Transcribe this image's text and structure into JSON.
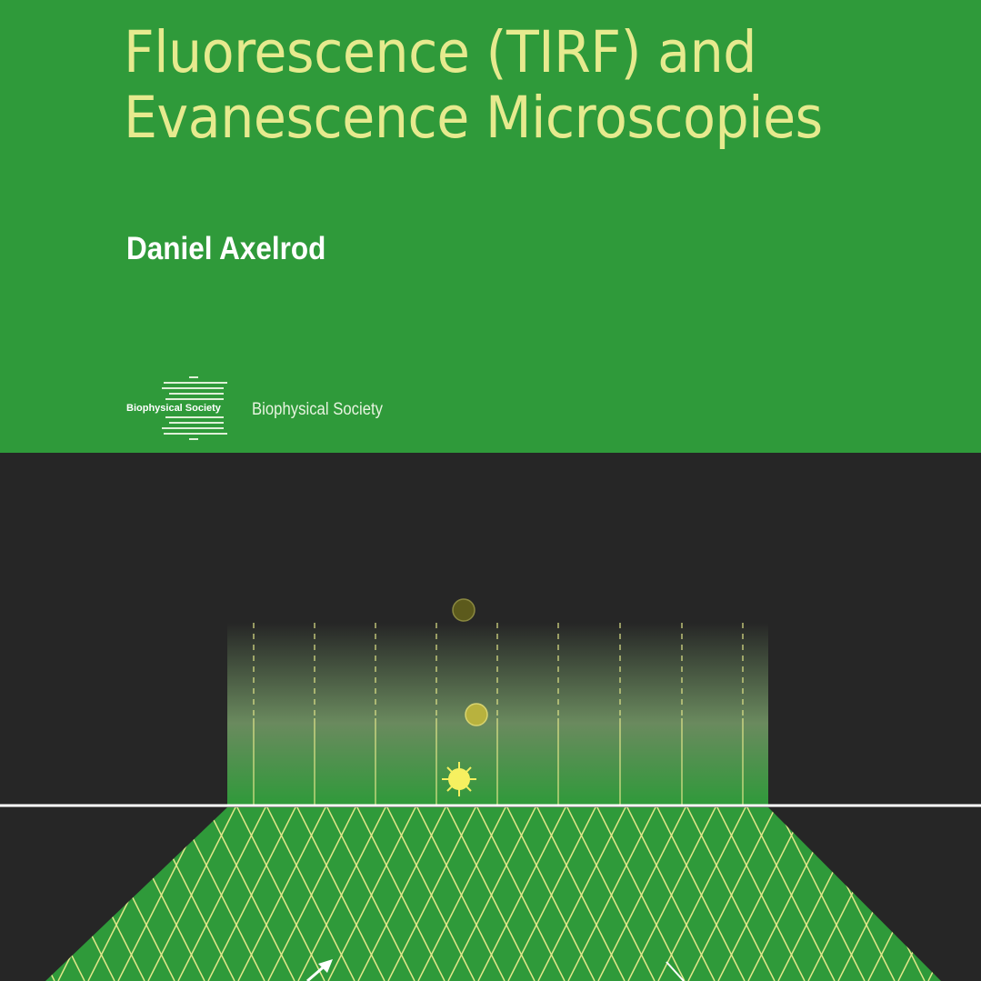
{
  "cover": {
    "title_lines": [
      "Fluorescence (TIRF) and",
      "Evanescence Microscopies"
    ],
    "author": "Daniel Axelrod",
    "logo_text": "Biophysical Society",
    "publisher": "Biophysical Society",
    "colors": {
      "green": "#2f9a3a",
      "dark": "#262626",
      "title": "#e6ea8e",
      "ray": "#e2e68a"
    }
  }
}
